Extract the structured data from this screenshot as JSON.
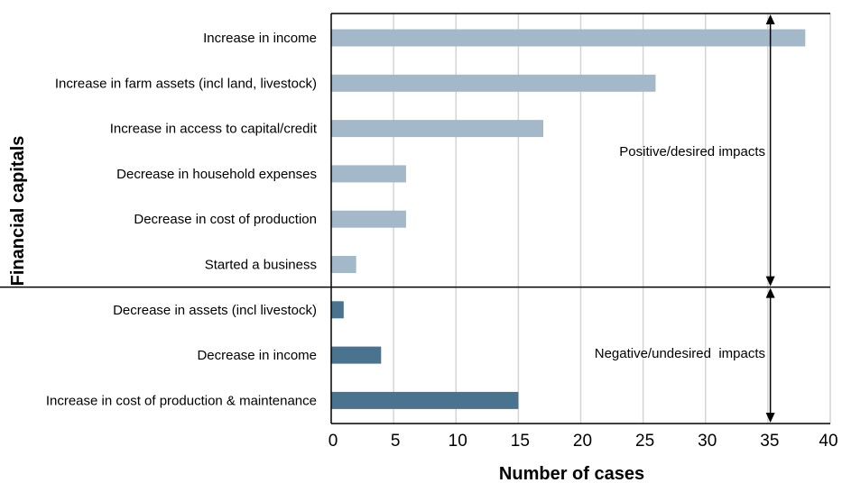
{
  "chart_data": {
    "type": "bar",
    "orientation": "horizontal",
    "xlabel": "Number of cases",
    "ylabel": "Financial capitals",
    "xlim": [
      0,
      40
    ],
    "xticks": [
      0,
      5,
      10,
      15,
      20,
      25,
      30,
      35,
      40
    ],
    "grid": "vertical",
    "categories": [
      "Increase in income",
      "Increase in farm assets (incl land, livestock)",
      "Increase in access to capital/credit",
      "Decrease in household expenses",
      "Decrease in cost of production",
      "Started a business",
      "Decrease in assets (incl livestock)",
      "Decrease in income",
      "Increase in cost of production & maintenance"
    ],
    "values": [
      38,
      26,
      17,
      6,
      6,
      2,
      1,
      4,
      15
    ],
    "groups": [
      {
        "label": "Positive/desired impacts",
        "start": 0,
        "end": 5,
        "color": "#a3b8c8"
      },
      {
        "label": "Negative/undesired  impacts",
        "start": 6,
        "end": 8,
        "color": "#4a7390"
      }
    ]
  }
}
